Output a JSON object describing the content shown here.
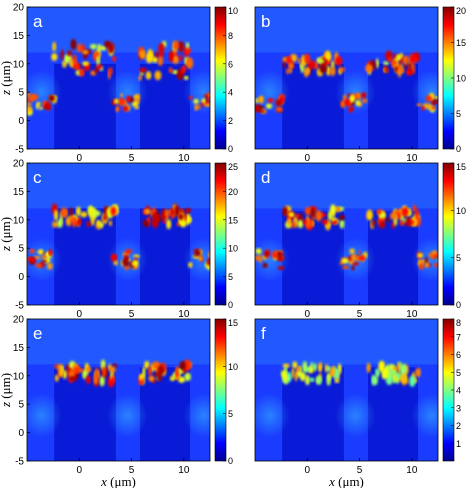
{
  "chart_data": [
    {
      "type": "heatmap",
      "panel_label": "a",
      "x_ticks": [
        "0",
        "5",
        "10"
      ],
      "z_ticks": [
        "20",
        "15",
        "10",
        "5",
        "0",
        "-5"
      ],
      "colorbar": {
        "ticks": [
          "10",
          "8",
          "6",
          "4",
          "2",
          "0"
        ],
        "range": [
          0,
          10
        ]
      },
      "ylabel": "z (μm)",
      "xlabel": "",
      "xlim": [
        -5,
        12.5
      ],
      "ylim": [
        -5,
        20
      ]
    },
    {
      "type": "heatmap",
      "panel_label": "b",
      "x_ticks": [
        "0",
        "5",
        "10"
      ],
      "z_ticks": [],
      "colorbar": {
        "ticks": [
          "20",
          "15",
          "10",
          "5",
          "0"
        ],
        "range": [
          0,
          20
        ]
      },
      "ylabel": "",
      "xlabel": "",
      "xlim": [
        -5,
        12.5
      ],
      "ylim": [
        -5,
        20
      ]
    },
    {
      "type": "heatmap",
      "panel_label": "c",
      "x_ticks": [
        "0",
        "5",
        "10"
      ],
      "z_ticks": [
        "20",
        "15",
        "10",
        "5",
        "0",
        "-5"
      ],
      "colorbar": {
        "ticks": [
          "25",
          "20",
          "15",
          "10",
          "5",
          "0"
        ],
        "range": [
          0,
          25
        ]
      },
      "ylabel": "z (μm)",
      "xlabel": "",
      "xlim": [
        -5,
        12.5
      ],
      "ylim": [
        -5,
        20
      ]
    },
    {
      "type": "heatmap",
      "panel_label": "d",
      "x_ticks": [
        "0",
        "5",
        "10"
      ],
      "z_ticks": [],
      "colorbar": {
        "ticks": [
          "15",
          "10",
          "5",
          "0"
        ],
        "range": [
          0,
          15
        ]
      },
      "ylabel": "",
      "xlabel": "",
      "xlim": [
        -5,
        12.5
      ],
      "ylim": [
        -5,
        20
      ]
    },
    {
      "type": "heatmap",
      "panel_label": "e",
      "x_ticks": [
        "0",
        "5",
        "10"
      ],
      "z_ticks": [
        "20",
        "15",
        "10",
        "5",
        "0",
        "-5"
      ],
      "colorbar": {
        "ticks": [
          "15",
          "10",
          "5",
          "0"
        ],
        "range": [
          0,
          15
        ]
      },
      "ylabel": "z (μm)",
      "xlabel": "x (μm)",
      "xlim": [
        -5,
        12.5
      ],
      "ylim": [
        -5,
        20
      ]
    },
    {
      "type": "heatmap",
      "panel_label": "f",
      "x_ticks": [
        "0",
        "5",
        "10"
      ],
      "z_ticks": [],
      "colorbar": {
        "ticks": [
          "8",
          "7",
          "6",
          "5",
          "4",
          "3",
          "2",
          "1"
        ],
        "range": [
          0,
          8
        ]
      },
      "ylabel": "",
      "xlabel": "x (μm)",
      "xlim": [
        -5,
        12.5
      ],
      "ylim": [
        -5,
        20
      ]
    }
  ]
}
